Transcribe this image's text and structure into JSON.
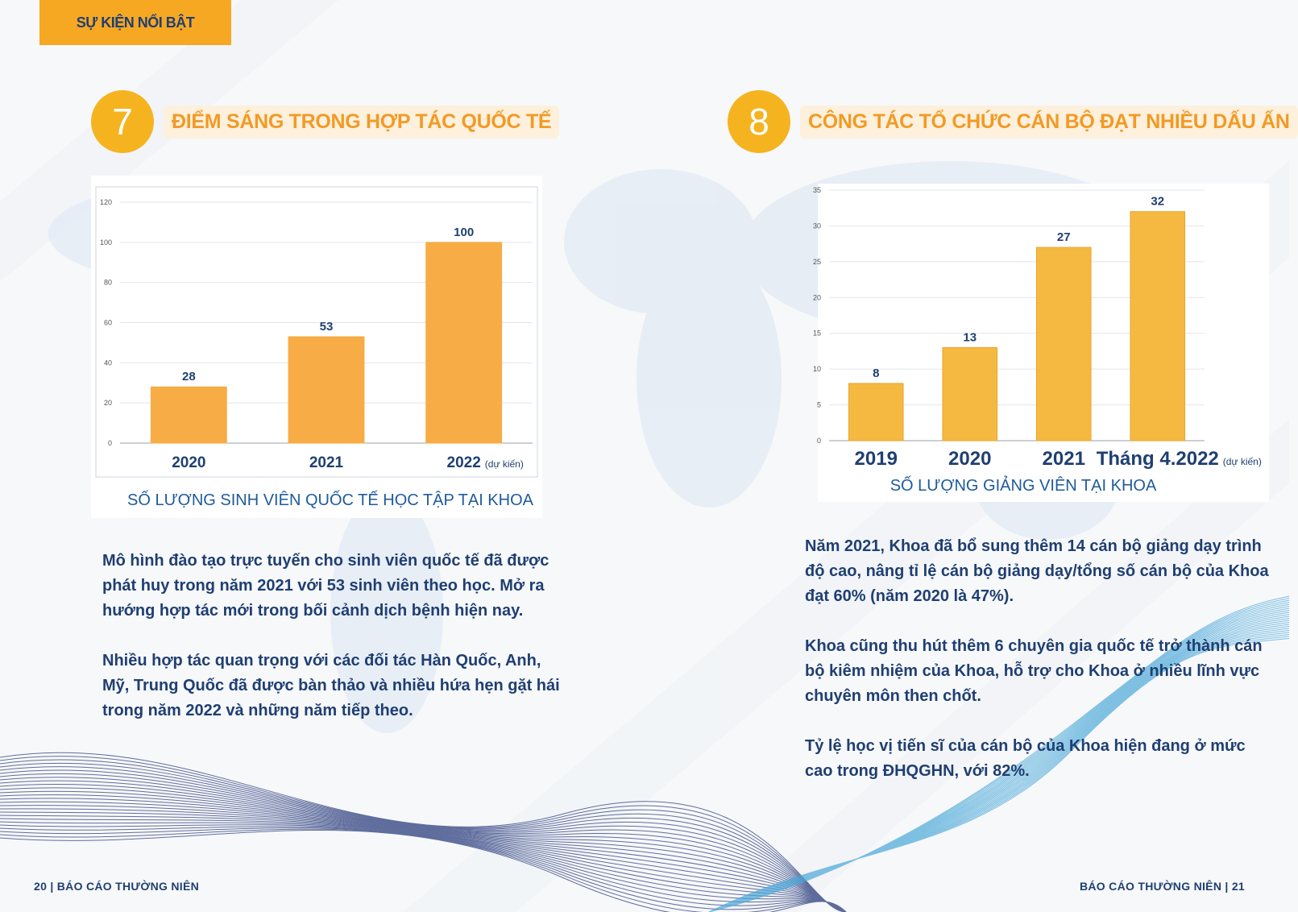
{
  "header": {
    "tag": "SỰ KIỆN NỔI BẬT"
  },
  "section7": {
    "number": "7",
    "title": "ĐIỂM SÁNG TRONG HỢP TÁC QUỐC TẾ",
    "caption": "SỐ LƯỢNG SINH VIÊN QUỐC TẾ HỌC TẬP TẠI KHOA",
    "paragraphs": [
      "Mô hình đào tạo trực tuyến cho sinh viên quốc tế đã được phát huy trong năm 2021 với 53 sinh viên theo học. Mở ra hướng hợp tác mới trong bối cảnh dịch bệnh hiện nay.",
      "Nhiều hợp tác quan trọng với các đối tác Hàn Quốc, Anh, Mỹ, Trung Quốc đã được bàn thảo và nhiều hứa hẹn gặt hái trong năm 2022 và những năm tiếp theo."
    ]
  },
  "section8": {
    "number": "8",
    "title": "CÔNG TÁC TỔ CHỨC CÁN BỘ ĐẠT NHIỀU DẤU ẤN",
    "caption": "SỐ LƯỢNG GIẢNG VIÊN TẠI KHOA",
    "paragraphs": [
      "Năm 2021, Khoa đã bổ sung thêm 14 cán bộ giảng dạy trình độ cao, nâng tỉ lệ cán bộ giảng dạy/tổng số cán bộ của Khoa đạt 60% (năm 2020 là 47%).",
      "Khoa cũng thu hút thêm 6 chuyên gia quốc tế trở thành cán bộ kiêm nhiệm của Khoa, hỗ trợ cho Khoa ở nhiều lĩnh vực chuyên môn then chốt.",
      "Tỷ lệ học vị tiến sĩ của cán bộ của Khoa hiện đang ở mức cao trong ĐHQGHN, với 82%."
    ]
  },
  "footer": {
    "left": "20 | BÁO CÁO THƯỜNG NIÊN",
    "right": "BÁO CÁO THƯỜNG NIÊN | 21"
  },
  "colors": {
    "accent": "#f7a823",
    "bar1": "#f7ac45",
    "bar2": "#f5b942",
    "text": "#1f3f72"
  },
  "chart_data": [
    {
      "type": "bar",
      "categories": [
        "2020",
        "2021",
        "2022"
      ],
      "category_notes": [
        "",
        "",
        "(dự kiến)"
      ],
      "values": [
        28,
        53,
        100
      ],
      "ylim": [
        0,
        120
      ],
      "yticks": [
        0,
        20,
        40,
        60,
        80,
        100,
        120
      ],
      "grid": true
    },
    {
      "type": "bar",
      "categories": [
        "2019",
        "2020",
        "2021",
        "Tháng 4.2022"
      ],
      "category_notes": [
        "",
        "",
        "",
        "(dự kiến)"
      ],
      "values": [
        8,
        13,
        27,
        32
      ],
      "ylim": [
        0,
        35
      ],
      "yticks": [
        0,
        5,
        10,
        15,
        20,
        25,
        30,
        35
      ],
      "grid": true
    }
  ]
}
